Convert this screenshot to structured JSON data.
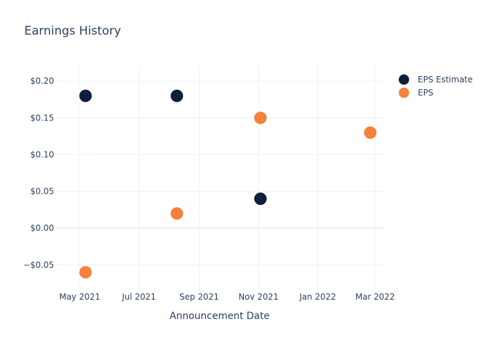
{
  "chart_data": {
    "type": "scatter",
    "title": "Earnings History",
    "xlabel": "Announcement Date",
    "ylabel": "",
    "x_ticks": [
      {
        "date": "2021-05-01",
        "label": "May 2021"
      },
      {
        "date": "2021-07-01",
        "label": "Jul 2021"
      },
      {
        "date": "2021-09-01",
        "label": "Sep 2021"
      },
      {
        "date": "2021-11-01",
        "label": "Nov 2021"
      },
      {
        "date": "2022-01-01",
        "label": "Jan 2022"
      },
      {
        "date": "2022-03-01",
        "label": "Mar 2022"
      }
    ],
    "y_ticks": [
      {
        "value": 0.2,
        "label": "$0.20"
      },
      {
        "value": 0.15,
        "label": "$0.15"
      },
      {
        "value": 0.1,
        "label": "$0.10"
      },
      {
        "value": 0.05,
        "label": "$0.05"
      },
      {
        "value": 0.0,
        "label": "$0.00"
      },
      {
        "value": -0.05,
        "label": "−$0.05"
      }
    ],
    "xlim": [
      "2021-04-06",
      "2022-03-10"
    ],
    "ylim": [
      -0.085,
      0.22
    ],
    "grid": true,
    "legend_position": "top-right",
    "series": [
      {
        "name": "EPS Estimate",
        "color": "#0d1f3c",
        "points": [
          {
            "x": "2021-05-07",
            "y": 0.18
          },
          {
            "x": "2021-08-09",
            "y": 0.18
          },
          {
            "x": "2021-11-03",
            "y": 0.04
          },
          {
            "x": "2022-02-24",
            "y": 0.13
          }
        ]
      },
      {
        "name": "EPS",
        "color": "#f5813b",
        "points": [
          {
            "x": "2021-05-07",
            "y": -0.06
          },
          {
            "x": "2021-08-09",
            "y": 0.02
          },
          {
            "x": "2021-11-03",
            "y": 0.15
          },
          {
            "x": "2022-02-24",
            "y": 0.13
          }
        ]
      }
    ]
  }
}
